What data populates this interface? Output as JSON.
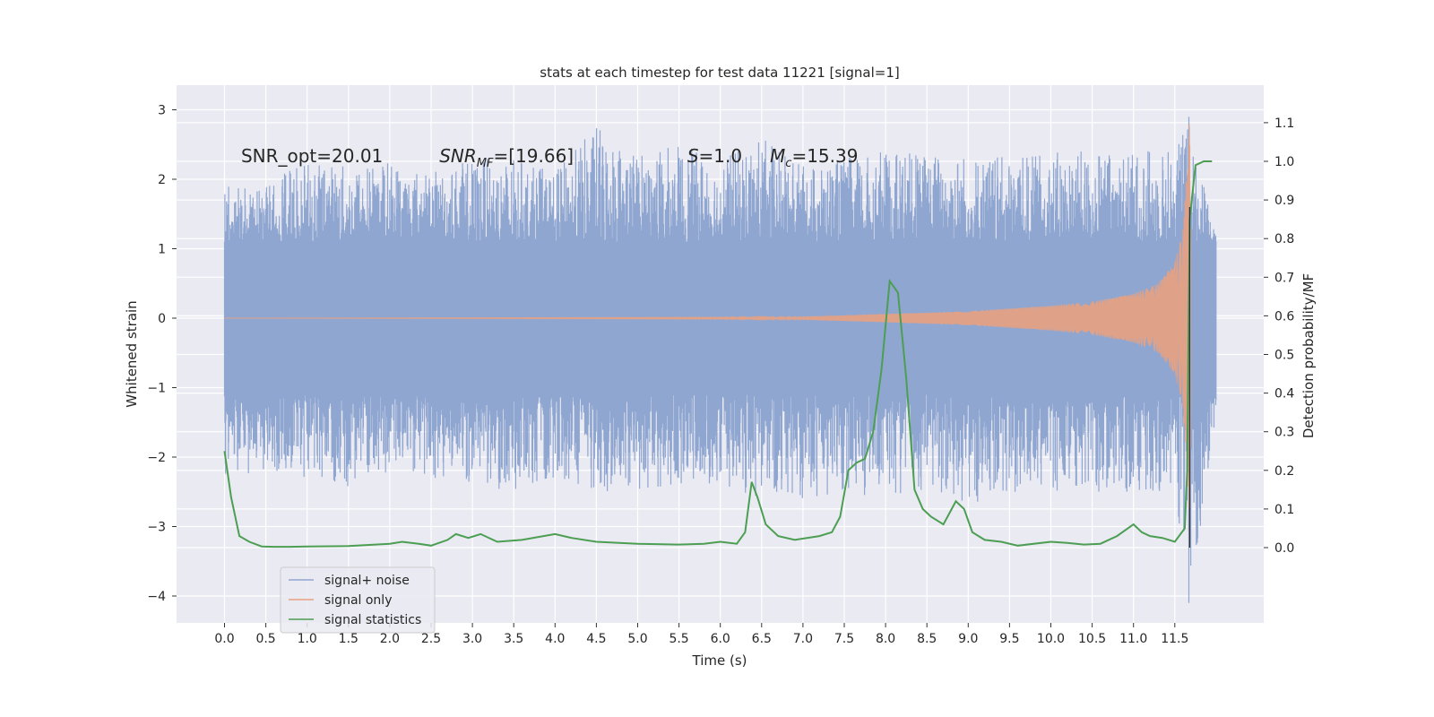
{
  "chart_data": {
    "type": "line",
    "title": "stats at each timestep for test data 11221 [signal=1]",
    "xlabel": "Time (s)",
    "ylabel": "Whitened strain",
    "y2label": "Detection probability/MF",
    "xlim": [
      -0.6,
      12.6
    ],
    "ylim": [
      -4.4,
      3.35
    ],
    "y2lim": [
      -0.1,
      1.19
    ],
    "x_ticks": [
      0.0,
      0.5,
      1.0,
      1.5,
      2.0,
      2.5,
      3.0,
      3.5,
      4.0,
      4.5,
      5.0,
      5.5,
      6.0,
      6.5,
      7.0,
      7.5,
      8.0,
      8.5,
      9.0,
      9.5,
      10.0,
      10.5,
      11.0,
      11.5
    ],
    "x_tick_labels": [
      "0.0",
      "0.5",
      "1.0",
      "1.5",
      "2.0",
      "2.5",
      "3.0",
      "3.5",
      "4.0",
      "4.5",
      "5.0",
      "5.5",
      "6.0",
      "6.5",
      "7.0",
      "7.5",
      "8.0",
      "8.5",
      "9.0",
      "9.5",
      "10.0",
      "10.5",
      "11.0",
      "11.5"
    ],
    "y_ticks": [
      3,
      2,
      1,
      0,
      -1,
      -2,
      -3,
      -4
    ],
    "y_tick_labels": [
      "3",
      "2",
      "1",
      "0",
      "−1",
      "−2",
      "−3",
      "−4"
    ],
    "y2_ticks": [
      1.1,
      1.0,
      0.9,
      0.8,
      0.7,
      0.6,
      0.5,
      0.4,
      0.3,
      0.2,
      0.1,
      0.0
    ],
    "y2_tick_labels": [
      "1.1",
      "1.0",
      "0.9",
      "0.8",
      "0.7",
      "0.6",
      "0.5",
      "0.4",
      "0.3",
      "0.2",
      "0.1",
      "0.0"
    ],
    "grid": true,
    "legend_position": "lower-left",
    "annotations": [
      {
        "prefix": "SNR_opt=20.01",
        "math": "",
        "sub": "",
        "suffix": "",
        "x": 0.2,
        "y": 2.3
      },
      {
        "prefix": "",
        "math": "SNR",
        "sub": "MF",
        "suffix": "=[19.66]",
        "x": 2.6,
        "y": 2.3
      },
      {
        "prefix": "",
        "math": "S",
        "sub": "",
        "suffix": "=1.0",
        "x": 5.6,
        "y": 2.3
      },
      {
        "prefix": "",
        "math": "M",
        "sub": "c",
        "suffix": "=15.39",
        "x": 6.6,
        "y": 2.3
      }
    ],
    "series": [
      {
        "name": "signal+ noise",
        "color": "#8fa6d1",
        "axis": "left",
        "envelope_t": [
          0.0,
          0.5,
          1.0,
          1.5,
          2.0,
          2.5,
          3.0,
          3.5,
          4.0,
          4.5,
          5.0,
          5.5,
          6.0,
          6.5,
          7.0,
          7.5,
          8.0,
          8.5,
          9.0,
          9.5,
          10.0,
          10.5,
          11.0,
          11.5,
          11.68,
          12.0
        ],
        "envelope_upper": [
          1.9,
          1.9,
          2.3,
          2.2,
          2.3,
          2.1,
          2.3,
          2.3,
          2.1,
          2.8,
          2.4,
          2.5,
          2.3,
          2.6,
          2.2,
          2.3,
          2.4,
          2.4,
          2.4,
          2.3,
          2.4,
          2.4,
          2.4,
          2.5,
          2.9,
          1.2
        ],
        "envelope_lower": [
          -2.4,
          -2.2,
          -2.3,
          -2.5,
          -2.2,
          -2.3,
          -2.4,
          -2.5,
          -2.3,
          -2.5,
          -2.5,
          -2.4,
          -2.4,
          -2.6,
          -2.6,
          -2.5,
          -2.6,
          -2.5,
          -2.7,
          -2.5,
          -2.5,
          -2.5,
          -2.5,
          -2.5,
          -4.1,
          -1.4
        ]
      },
      {
        "name": "signal only",
        "color": "#e8a281",
        "axis": "left",
        "amp_t": [
          0.0,
          6.0,
          7.0,
          8.0,
          9.0,
          10.0,
          10.5,
          11.0,
          11.3,
          11.5,
          11.6,
          11.65,
          11.68,
          11.7
        ],
        "amp_v": [
          0.0,
          0.01,
          0.02,
          0.06,
          0.1,
          0.18,
          0.24,
          0.35,
          0.5,
          0.8,
          1.3,
          2.2,
          2.95,
          0.0
        ]
      },
      {
        "name": "signal statistics",
        "color": "#4c9e52",
        "axis": "right",
        "x": [
          0.0,
          0.08,
          0.18,
          0.3,
          0.45,
          0.6,
          0.8,
          1.0,
          1.5,
          2.0,
          2.15,
          2.35,
          2.5,
          2.7,
          2.8,
          2.95,
          3.1,
          3.3,
          3.6,
          4.0,
          4.2,
          4.5,
          5.0,
          5.5,
          5.8,
          6.0,
          6.2,
          6.3,
          6.38,
          6.45,
          6.55,
          6.7,
          6.9,
          7.2,
          7.35,
          7.45,
          7.55,
          7.65,
          7.75,
          7.85,
          7.95,
          8.05,
          8.15,
          8.25,
          8.35,
          8.45,
          8.55,
          8.7,
          8.85,
          8.95,
          9.05,
          9.2,
          9.4,
          9.6,
          10.0,
          10.2,
          10.4,
          10.6,
          10.8,
          11.0,
          11.1,
          11.2,
          11.35,
          11.5,
          11.62,
          11.65,
          11.68,
          11.75,
          11.85,
          11.95
        ],
        "values": [
          0.25,
          0.13,
          0.03,
          0.015,
          0.003,
          0.002,
          0.002,
          0.003,
          0.004,
          0.01,
          0.015,
          0.01,
          0.005,
          0.02,
          0.035,
          0.025,
          0.035,
          0.015,
          0.02,
          0.035,
          0.025,
          0.015,
          0.01,
          0.008,
          0.01,
          0.015,
          0.01,
          0.04,
          0.17,
          0.13,
          0.06,
          0.03,
          0.02,
          0.03,
          0.04,
          0.08,
          0.2,
          0.22,
          0.23,
          0.3,
          0.46,
          0.69,
          0.66,
          0.44,
          0.15,
          0.1,
          0.08,
          0.06,
          0.12,
          0.1,
          0.04,
          0.02,
          0.015,
          0.005,
          0.015,
          0.012,
          0.008,
          0.01,
          0.03,
          0.06,
          0.04,
          0.03,
          0.025,
          0.015,
          0.05,
          0.2,
          0.85,
          0.99,
          1.0,
          1.0
        ]
      }
    ]
  }
}
